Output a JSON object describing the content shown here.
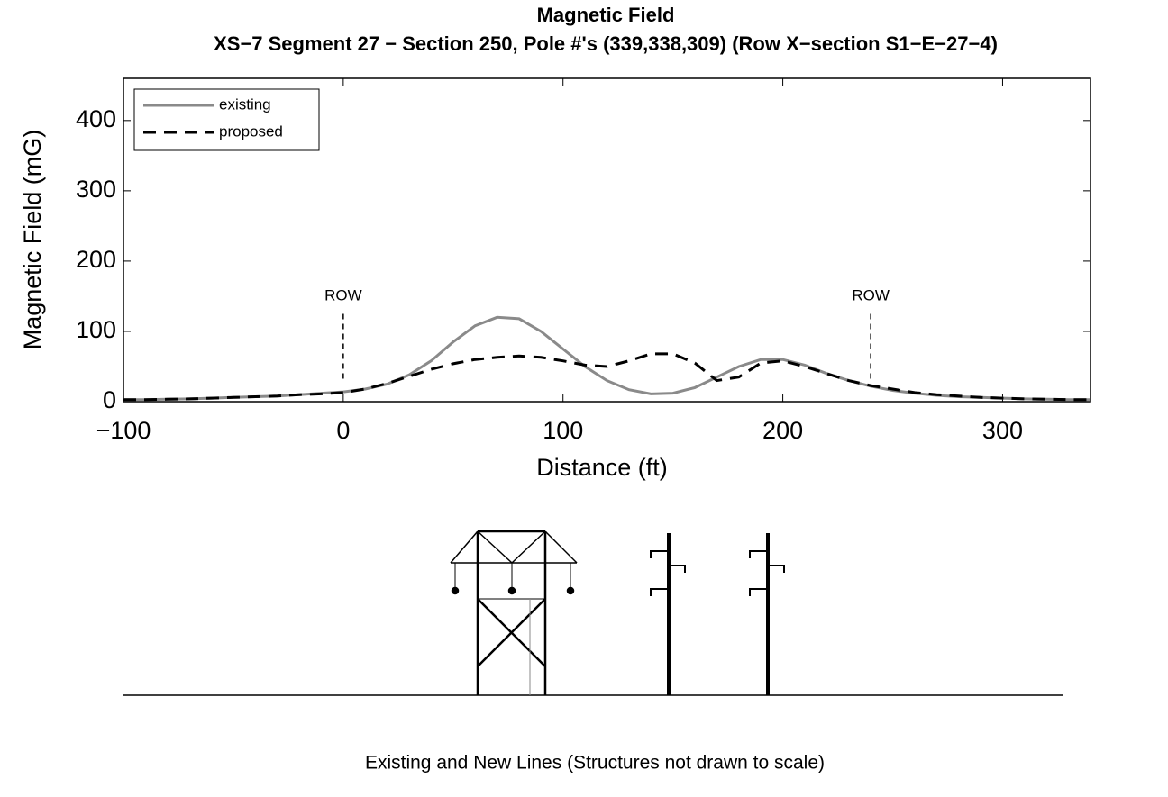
{
  "chart_data": {
    "type": "line",
    "title": "Magnetic Field",
    "subtitle": "XS−7 Segment 27 − Section 250, Pole #'s (339,338,309) (Row X−section S1−E−27−4)",
    "x_label": "Distance (ft)",
    "y_label": "Magnetic Field (mG)",
    "x": [
      -100,
      -90,
      -80,
      -70,
      -60,
      -50,
      -40,
      -30,
      -20,
      -10,
      0,
      10,
      20,
      30,
      40,
      50,
      60,
      70,
      80,
      90,
      100,
      110,
      120,
      130,
      140,
      150,
      160,
      170,
      180,
      190,
      200,
      210,
      220,
      230,
      240,
      250,
      260,
      270,
      280,
      290,
      300,
      310,
      320,
      330,
      340
    ],
    "series": [
      {
        "name": "existing",
        "color": "#8a8a8a",
        "dashed": false,
        "values": [
          3,
          3,
          3.5,
          4,
          5,
          6,
          7,
          8,
          10,
          12,
          14,
          18,
          25,
          38,
          58,
          85,
          108,
          120,
          118,
          100,
          75,
          50,
          30,
          17,
          11,
          12,
          20,
          35,
          50,
          60,
          60,
          52,
          40,
          30,
          22,
          16,
          12,
          9,
          7,
          6,
          5,
          4,
          3.5,
          3,
          3
        ]
      },
      {
        "name": "proposed",
        "color": "#000000",
        "dashed": true,
        "values": [
          3,
          3,
          3.5,
          4,
          5,
          6,
          7,
          8,
          10,
          11,
          13,
          18,
          26,
          36,
          46,
          54,
          60,
          63,
          65,
          63,
          58,
          52,
          50,
          58,
          68,
          68,
          55,
          30,
          35,
          55,
          58,
          50,
          40,
          30,
          23,
          18,
          13,
          10,
          8,
          6,
          5,
          4,
          3.5,
          3,
          3
        ]
      }
    ],
    "xlim": [
      -100,
      340
    ],
    "ylim": [
      0,
      460
    ],
    "xticks": [
      {
        "value": -100,
        "label": "−100"
      },
      0,
      100,
      200,
      300
    ],
    "yticks": [
      0,
      100,
      200,
      300,
      400
    ],
    "legend": "upper left",
    "annotations": [
      {
        "text": "ROW",
        "x": 0
      },
      {
        "text": "ROW",
        "x": 240
      }
    ],
    "caption": "Existing and New Lines (Structures not drawn to scale)"
  }
}
